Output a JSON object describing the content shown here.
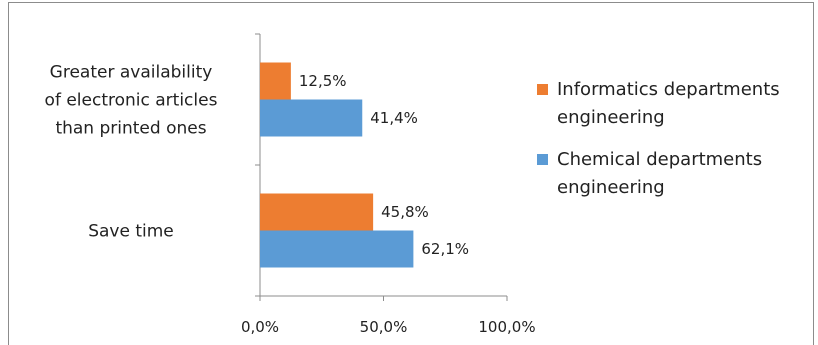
{
  "chart_data": {
    "type": "bar",
    "orientation": "horizontal",
    "categories": [
      [
        "Greater availability",
        "of electronic articles",
        "than printed ones"
      ],
      [
        "Save time"
      ]
    ],
    "series": [
      {
        "name": "Informatics departments engineering",
        "legend_lines": [
          "Informatics departments",
          "engineering"
        ],
        "color": "#ED7D31",
        "values": [
          12.5,
          45.8
        ],
        "labels": [
          "12,5%",
          "45,8%"
        ]
      },
      {
        "name": "Chemical departments engineering",
        "legend_lines": [
          "Chemical departments",
          "engineering"
        ],
        "color": "#5B9BD5",
        "values": [
          41.4,
          62.1
        ],
        "labels": [
          "41,4%",
          "62,1%"
        ]
      }
    ],
    "xlim": [
      0,
      100
    ],
    "xticks": [
      0,
      50,
      100
    ],
    "xtick_labels": [
      "0,0%",
      "50,0%",
      "100,0%"
    ],
    "grid": false,
    "legend_position": "right"
  }
}
